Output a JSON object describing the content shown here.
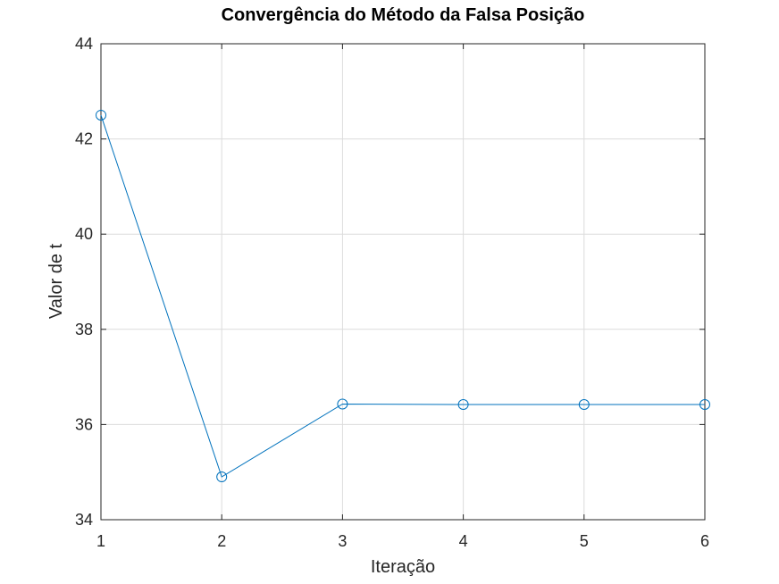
{
  "chart_data": {
    "type": "line",
    "title": "Convergência do Método da Falsa Posição",
    "xlabel": "Iteração",
    "ylabel": "Valor de t",
    "x": [
      1,
      2,
      3,
      4,
      5,
      6
    ],
    "xlim": [
      1,
      6
    ],
    "ylim": [
      34,
      44
    ],
    "xticks": [
      1,
      2,
      3,
      4,
      5,
      6
    ],
    "yticks": [
      34,
      36,
      38,
      40,
      42,
      44
    ],
    "xtick_labels": [
      "1",
      "2",
      "3",
      "4",
      "5",
      "6"
    ],
    "ytick_labels": [
      "34",
      "36",
      "38",
      "40",
      "42",
      "44"
    ],
    "grid": true,
    "marker": "circle",
    "series": [
      {
        "values": [
          42.5,
          34.9,
          36.43,
          36.42,
          36.42,
          36.42
        ],
        "color": "#0072bd"
      }
    ]
  }
}
